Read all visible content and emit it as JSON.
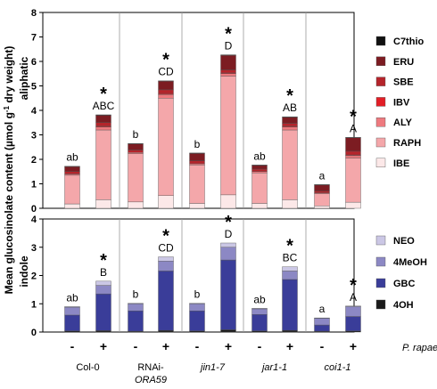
{
  "chart_data": [
    {
      "type": "bar",
      "stacked": true,
      "panel_label": "aliphatic",
      "ylim": [
        0,
        8
      ],
      "yticks": [
        "0",
        "1",
        "2",
        "3",
        "4",
        "5",
        "6",
        "7",
        "8"
      ],
      "series": [
        {
          "name": "IBE",
          "color": "#fce8e8",
          "values": [
            0.18,
            0.35,
            0.26,
            0.52,
            0.2,
            0.55,
            0.2,
            0.35,
            0.1,
            0.25
          ]
        },
        {
          "name": "RAPH",
          "color": "#f4a7aa",
          "values": [
            1.17,
            2.85,
            1.97,
            3.98,
            1.57,
            4.85,
            1.25,
            2.85,
            0.5,
            1.8
          ]
        },
        {
          "name": "ALY",
          "color": "#ee7a7f",
          "values": [
            0.05,
            0.12,
            0.05,
            0.15,
            0.05,
            0.1,
            0.05,
            0.12,
            0.03,
            0.1
          ]
        },
        {
          "name": "IBV",
          "color": "#e21e26",
          "values": [
            0.0,
            0.03,
            0.0,
            0.04,
            0.0,
            0.03,
            0.0,
            0.03,
            0.0,
            0.03
          ]
        },
        {
          "name": "SBE",
          "color": "#b5242b",
          "values": [
            0.1,
            0.15,
            0.1,
            0.15,
            0.12,
            0.12,
            0.1,
            0.12,
            0.07,
            0.15
          ]
        },
        {
          "name": "ERU",
          "color": "#7c1c22",
          "values": [
            0.2,
            0.3,
            0.25,
            0.35,
            0.3,
            0.6,
            0.15,
            0.25,
            0.25,
            0.55
          ]
        },
        {
          "name": "C7thio",
          "color": "#111111",
          "values": [
            0.02,
            0.02,
            0.02,
            0.02,
            0.02,
            0.02,
            0.02,
            0.02,
            0.02,
            0.02
          ]
        }
      ],
      "significance_labels": [
        "ab",
        "ABC",
        "b",
        "CD",
        "b",
        "D",
        "ab",
        "AB",
        "a",
        "A"
      ],
      "asterisks": [
        false,
        true,
        false,
        true,
        false,
        true,
        false,
        true,
        false,
        true
      ]
    },
    {
      "type": "bar",
      "stacked": true,
      "panel_label": "indole",
      "ylim": [
        0,
        4
      ],
      "yticks": [
        "0",
        "1",
        "2",
        "3",
        "4"
      ],
      "series": [
        {
          "name": "4OH",
          "color": "#1a1a1a",
          "values": [
            0.04,
            0.05,
            0.03,
            0.06,
            0.04,
            0.08,
            0.04,
            0.06,
            0.03,
            0.04
          ]
        },
        {
          "name": "GBC",
          "color": "#3a3d99",
          "values": [
            0.56,
            1.3,
            0.72,
            2.1,
            0.71,
            2.47,
            0.58,
            1.8,
            0.22,
            0.51
          ]
        },
        {
          "name": "4MeOH",
          "color": "#8c88c4",
          "values": [
            0.28,
            0.3,
            0.25,
            0.35,
            0.25,
            0.45,
            0.2,
            0.3,
            0.24,
            0.35
          ]
        },
        {
          "name": "NEO",
          "color": "#cbc7e5",
          "values": [
            0.02,
            0.15,
            0.02,
            0.15,
            0.02,
            0.15,
            0.02,
            0.15,
            0.01,
            0.02
          ]
        }
      ],
      "significance_labels": [
        "ab",
        "B",
        "b",
        "CD",
        "b",
        "D",
        "ab",
        "BC",
        "a",
        "A"
      ],
      "asterisks": [
        false,
        true,
        false,
        true,
        false,
        true,
        false,
        true,
        false,
        true
      ]
    }
  ],
  "ylabel_main": "Mean glucosinolate content (µmol g",
  "ylabel_sup": "-1",
  "ylabel_tail": " dry weight)",
  "treatment_labels": [
    "-",
    "+",
    "-",
    "+",
    "-",
    "+",
    "-",
    "+",
    "-",
    "+"
  ],
  "treatment_name": "P. rapae",
  "genotypes": [
    {
      "line1": "Col-0",
      "line2": "",
      "italic": false
    },
    {
      "line1": "RNAi-",
      "line2": "ORA59",
      "italic": false
    },
    {
      "line1": "jin1-7",
      "line2": "",
      "italic": true
    },
    {
      "line1": "jar1-1",
      "line2": "",
      "italic": true
    },
    {
      "line1": "coi1-1",
      "line2": "",
      "italic": true
    }
  ],
  "legend_aliphatic": [
    "C7thio",
    "ERU",
    "SBE",
    "IBV",
    "ALY",
    "RAPH",
    "IBE"
  ],
  "legend_indole": [
    "NEO",
    "4MeOH",
    "GBC",
    "4OH"
  ],
  "asterisk_symbol": "*"
}
